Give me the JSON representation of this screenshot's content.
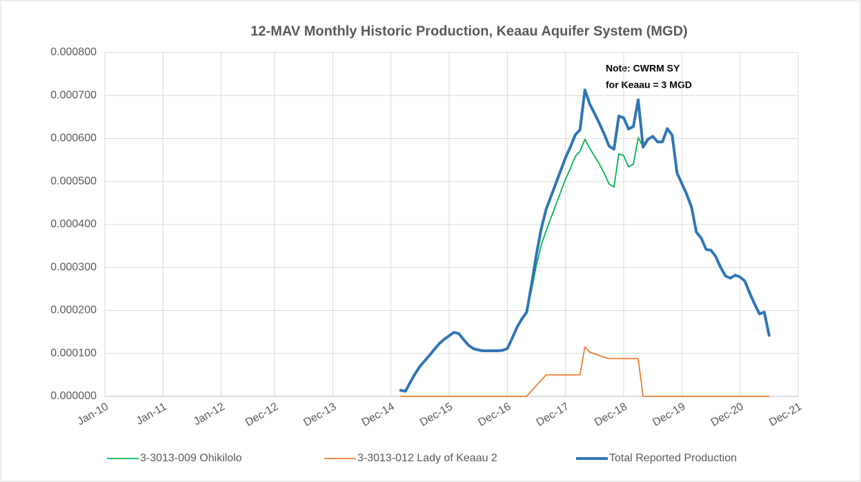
{
  "chart_data": {
    "type": "line",
    "title": "12-MAV Monthly Historic Production, Keaau Aquifer System (MGD)",
    "annotation": [
      "Note:  CWRM SY",
      "for Keaau = 3 MGD"
    ],
    "x": [
      "2015-02",
      "2015-03",
      "2015-04",
      "2015-05",
      "2015-06",
      "2015-07",
      "2015-08",
      "2015-09",
      "2015-10",
      "2015-11",
      "2015-12",
      "2016-01",
      "2016-02",
      "2016-03",
      "2016-04",
      "2016-05",
      "2016-06",
      "2016-07",
      "2016-08",
      "2016-09",
      "2016-10",
      "2016-11",
      "2016-12",
      "2017-01",
      "2017-02",
      "2017-03",
      "2017-04",
      "2017-05",
      "2017-06",
      "2017-07",
      "2017-08",
      "2017-09",
      "2017-10",
      "2017-11",
      "2017-12",
      "2018-01",
      "2018-02",
      "2018-03",
      "2018-04",
      "2018-05",
      "2018-06",
      "2018-07",
      "2018-08",
      "2018-09",
      "2018-10",
      "2018-11",
      "2018-12",
      "2019-01",
      "2019-02",
      "2019-03",
      "2019-04",
      "2019-05",
      "2019-06",
      "2019-07",
      "2019-08",
      "2019-09",
      "2019-10",
      "2019-11",
      "2019-12",
      "2020-01",
      "2020-02",
      "2020-03",
      "2020-04",
      "2020-05",
      "2020-06",
      "2020-07",
      "2020-08",
      "2020-09",
      "2020-10",
      "2020-11",
      "2020-12",
      "2021-01",
      "2021-02",
      "2021-03",
      "2021-04",
      "2021-05",
      "2021-06"
    ],
    "series": [
      {
        "name": "3-3013-009 Ohikilolo",
        "color": "#00b050",
        "width": 1.8,
        "values": [
          1.4e-05,
          1.2e-05,
          3.3e-05,
          5.3e-05,
          7e-05,
          8.3e-05,
          9.6e-05,
          0.00011,
          0.000123,
          0.000133,
          0.000141,
          0.000149,
          0.000146,
          0.000132,
          0.000119,
          0.000111,
          0.000108,
          0.000106,
          0.000106,
          0.000106,
          0.000106,
          0.000107,
          0.000111,
          0.000135,
          0.000161,
          0.00018,
          0.000196,
          0.000247,
          0.000305,
          0.000352,
          0.000385,
          0.000415,
          0.000445,
          0.000475,
          0.000505,
          0.00053,
          0.000558,
          0.00057,
          0.000598,
          0.000577,
          0.000559,
          0.00054,
          0.000519,
          0.000494,
          0.000487,
          0.000564,
          0.00056,
          0.000534,
          0.00054,
          0.000602,
          0.00058,
          0.000598,
          0.000605,
          0.000592,
          0.000592,
          0.000623,
          0.000608,
          0.00052,
          0.000495,
          0.00047,
          0.00044,
          0.000382,
          0.000368,
          0.000342,
          0.00034,
          0.000325,
          0.0003,
          0.00028,
          0.000275,
          0.000282,
          0.000278,
          0.000268,
          0.00024,
          0.000215,
          0.000192,
          0.000196,
          0.000142
        ]
      },
      {
        "name": "3-3013-012 Lady of Keaau 2",
        "color": "#ed7d31",
        "width": 1.8,
        "values": [
          0,
          0,
          0,
          0,
          0,
          0,
          0,
          0,
          0,
          0,
          0,
          0,
          0,
          0,
          0,
          0,
          0,
          0,
          0,
          0,
          0,
          0,
          0,
          0,
          0,
          0,
          0,
          1.3e-05,
          2.5e-05,
          3.8e-05,
          5e-05,
          5e-05,
          5e-05,
          5e-05,
          5e-05,
          5e-05,
          5e-05,
          5e-05,
          0.000115,
          0.000103,
          9.9e-05,
          9.5e-05,
          9.1e-05,
          8.8e-05,
          8.8e-05,
          8.8e-05,
          8.8e-05,
          8.8e-05,
          8.8e-05,
          8.8e-05,
          0,
          0,
          0,
          0,
          0,
          0,
          0,
          0,
          0,
          0,
          0,
          0,
          0,
          0,
          0,
          0,
          0,
          0,
          0,
          0,
          0,
          0,
          0,
          0,
          0,
          0,
          0
        ]
      },
      {
        "name": "Total Reported Production",
        "color": "#2e75b6",
        "width": 4,
        "values": [
          1.4e-05,
          1.2e-05,
          3.3e-05,
          5.3e-05,
          7e-05,
          8.3e-05,
          9.6e-05,
          0.00011,
          0.000123,
          0.000133,
          0.000141,
          0.000149,
          0.000146,
          0.000132,
          0.000119,
          0.000111,
          0.000108,
          0.000106,
          0.000106,
          0.000106,
          0.000106,
          0.000107,
          0.000111,
          0.000135,
          0.000161,
          0.00018,
          0.000196,
          0.00026,
          0.00033,
          0.00039,
          0.000435,
          0.000465,
          0.000495,
          0.000525,
          0.000555,
          0.00058,
          0.000608,
          0.00062,
          0.000713,
          0.00068,
          0.000658,
          0.000635,
          0.00061,
          0.000582,
          0.000575,
          0.000652,
          0.000648,
          0.000622,
          0.000628,
          0.00069,
          0.00058,
          0.000598,
          0.000605,
          0.000592,
          0.000592,
          0.000623,
          0.000608,
          0.00052,
          0.000495,
          0.00047,
          0.00044,
          0.000382,
          0.000368,
          0.000342,
          0.00034,
          0.000325,
          0.0003,
          0.00028,
          0.000275,
          0.000282,
          0.000278,
          0.000268,
          0.00024,
          0.000215,
          0.000192,
          0.000196,
          0.000142
        ]
      }
    ],
    "xlim": [
      "2010-01",
      "2021-12"
    ],
    "xticks": [
      {
        "value": "2010-01",
        "label": "Jan-10"
      },
      {
        "value": "2011-01",
        "label": "Jan-11"
      },
      {
        "value": "2012-01",
        "label": "Jan-12"
      },
      {
        "value": "2012-12",
        "label": "Dec-12"
      },
      {
        "value": "2013-12",
        "label": "Dec-13"
      },
      {
        "value": "2014-12",
        "label": "Dec-14"
      },
      {
        "value": "2015-12",
        "label": "Dec-15"
      },
      {
        "value": "2016-12",
        "label": "Dec-16"
      },
      {
        "value": "2017-12",
        "label": "Dec-17"
      },
      {
        "value": "2018-12",
        "label": "Dec-18"
      },
      {
        "value": "2019-12",
        "label": "Dec-19"
      },
      {
        "value": "2020-12",
        "label": "Dec-20"
      },
      {
        "value": "2021-12",
        "label": "Dec-21"
      }
    ],
    "ylim": [
      0,
      0.0008
    ],
    "yticks": [
      {
        "value": 0,
        "label": "0.000000"
      },
      {
        "value": 0.0001,
        "label": "0.000100"
      },
      {
        "value": 0.0002,
        "label": "0.000200"
      },
      {
        "value": 0.0003,
        "label": "0.000300"
      },
      {
        "value": 0.0004,
        "label": "0.000400"
      },
      {
        "value": 0.0005,
        "label": "0.000500"
      },
      {
        "value": 0.0006,
        "label": "0.000600"
      },
      {
        "value": 0.0007,
        "label": "0.000700"
      },
      {
        "value": 0.0008,
        "label": "0.000800"
      }
    ],
    "grid": true,
    "legend": "bottom"
  }
}
